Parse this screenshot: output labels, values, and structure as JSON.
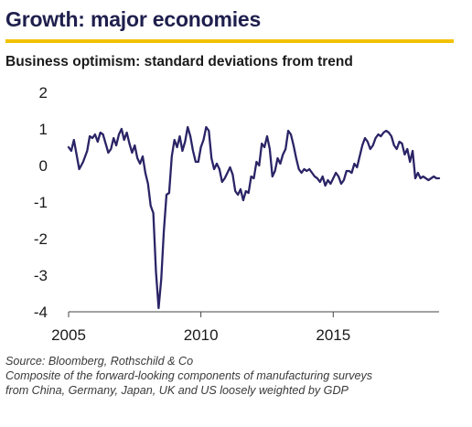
{
  "title": "Growth: major economies",
  "subtitle": "Business optimism: standard deviations from trend",
  "source": "Source: Bloomberg, Rothschild & Co",
  "note_line1": "Composite of the forward-looking components of manufacturing surveys",
  "note_line2": "from China, Germany, Japan, UK and US loosely weighted by GDP",
  "colors": {
    "line": "#2a2466",
    "accent_rule": "#f2c200",
    "title": "#1f1f4e"
  },
  "chart_data": {
    "type": "line",
    "title": "",
    "xlabel": "",
    "ylabel": "",
    "xlim": [
      2005,
      2019
    ],
    "ylim": [
      -4,
      2
    ],
    "yticks": [
      2,
      1,
      0,
      -1,
      -2,
      -3,
      -4
    ],
    "ytick_labels": [
      "2",
      "1",
      "0",
      "-1",
      "-2",
      "-3",
      "-4"
    ],
    "xticks": [
      2005,
      2010,
      2015
    ],
    "xtick_labels": [
      "2005",
      "2010",
      "2015"
    ],
    "grid": false,
    "legend": "none",
    "series": [
      {
        "x": [
          2005.0,
          2005.1,
          2005.2,
          2005.3,
          2005.4,
          2005.55,
          2005.7,
          2005.8,
          2005.9,
          2006.0,
          2006.1,
          2006.2,
          2006.3,
          2006.4,
          2006.5,
          2006.6,
          2006.7,
          2006.8,
          2006.9,
          2007.0,
          2007.1,
          2007.2,
          2007.3,
          2007.4,
          2007.5,
          2007.6,
          2007.7,
          2007.8,
          2007.9,
          2008.0,
          2008.1,
          2008.2,
          2008.3,
          2008.4,
          2008.5,
          2008.6,
          2008.7,
          2008.8,
          2008.9,
          2009.0,
          2009.1,
          2009.2,
          2009.3,
          2009.4,
          2009.5,
          2009.6,
          2009.7,
          2009.8,
          2009.9,
          2010.0,
          2010.1,
          2010.2,
          2010.3,
          2010.4,
          2010.5,
          2010.6,
          2010.7,
          2010.8,
          2010.9,
          2011.0,
          2011.1,
          2011.2,
          2011.3,
          2011.4,
          2011.5,
          2011.6,
          2011.7,
          2011.8,
          2011.9,
          2012.0,
          2012.1,
          2012.2,
          2012.3,
          2012.4,
          2012.5,
          2012.6,
          2012.7,
          2012.8,
          2012.9,
          2013.0,
          2013.1,
          2013.2,
          2013.3,
          2013.4,
          2013.5,
          2013.6,
          2013.7,
          2013.8,
          2013.9,
          2014.0,
          2014.1,
          2014.2,
          2014.3,
          2014.4,
          2014.5,
          2014.6,
          2014.7,
          2014.8,
          2014.9,
          2015.0,
          2015.1,
          2015.2,
          2015.3,
          2015.4,
          2015.5,
          2015.6,
          2015.7,
          2015.8,
          2015.9,
          2016.0,
          2016.1,
          2016.2,
          2016.3,
          2016.4,
          2016.5,
          2016.6,
          2016.7,
          2016.8,
          2016.9,
          2017.0,
          2017.1,
          2017.2,
          2017.3,
          2017.4,
          2017.5,
          2017.6,
          2017.7,
          2017.8,
          2017.9,
          2018.0,
          2018.1,
          2018.2,
          2018.3,
          2018.4,
          2018.5,
          2018.6,
          2018.7,
          2018.8,
          2018.9,
          2019.0
        ],
        "y": [
          0.5,
          0.4,
          0.7,
          0.3,
          -0.1,
          0.1,
          0.4,
          0.8,
          0.75,
          0.85,
          0.65,
          0.9,
          0.85,
          0.6,
          0.35,
          0.45,
          0.75,
          0.55,
          0.85,
          1.0,
          0.7,
          0.9,
          0.6,
          0.35,
          0.55,
          0.2,
          0.05,
          0.25,
          -0.2,
          -0.5,
          -1.1,
          -1.3,
          -2.9,
          -3.9,
          -3.1,
          -1.8,
          -0.8,
          -0.75,
          0.25,
          0.7,
          0.5,
          0.8,
          0.4,
          0.65,
          1.05,
          0.8,
          0.4,
          0.1,
          0.1,
          0.5,
          0.7,
          1.05,
          0.95,
          0.2,
          -0.1,
          0.05,
          -0.1,
          -0.45,
          -0.35,
          -0.2,
          -0.05,
          -0.25,
          -0.7,
          -0.8,
          -0.65,
          -0.95,
          -0.7,
          -0.75,
          -0.3,
          -0.35,
          0.1,
          0.0,
          0.6,
          0.5,
          0.8,
          0.45,
          -0.3,
          -0.15,
          0.2,
          0.05,
          0.3,
          0.45,
          0.95,
          0.85,
          0.55,
          0.2,
          -0.1,
          -0.2,
          -0.1,
          -0.15,
          -0.1,
          -0.2,
          -0.3,
          -0.35,
          -0.45,
          -0.3,
          -0.55,
          -0.4,
          -0.5,
          -0.35,
          -0.2,
          -0.3,
          -0.5,
          -0.4,
          -0.15,
          -0.15,
          -0.2,
          0.05,
          -0.05,
          0.25,
          0.55,
          0.75,
          0.65,
          0.45,
          0.55,
          0.75,
          0.85,
          0.8,
          0.9,
          0.95,
          0.9,
          0.8,
          0.55,
          0.45,
          0.65,
          0.6,
          0.3,
          0.45,
          0.1,
          0.4,
          -0.35,
          -0.2,
          -0.35,
          -0.3,
          -0.35,
          -0.4,
          -0.35,
          -0.3,
          -0.35,
          -0.35
        ]
      }
    ]
  }
}
